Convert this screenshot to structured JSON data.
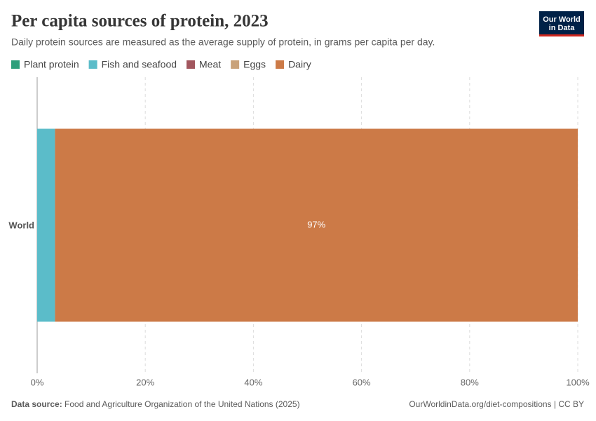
{
  "chart_data": {
    "type": "stacked-bar-horizontal",
    "title": "Per capita sources of protein, 2023",
    "subtitle": "Daily protein sources are measured as the average supply of protein, in grams per capita per day.",
    "categories": [
      "World"
    ],
    "series": [
      {
        "name": "Plant protein",
        "color": "#2e9f7b",
        "values": [
          0
        ]
      },
      {
        "name": "Fish and seafood",
        "color": "#5bbcc9",
        "values": [
          3.3
        ]
      },
      {
        "name": "Meat",
        "color": "#a2575e",
        "values": [
          0
        ]
      },
      {
        "name": "Eggs",
        "color": "#c9a27a",
        "values": [
          0
        ]
      },
      {
        "name": "Dairy",
        "color": "#cc7a47",
        "values": [
          96.7
        ],
        "value_labels": [
          "97%"
        ]
      }
    ],
    "xlim": [
      0,
      100
    ],
    "xticks": [
      {
        "value": 0,
        "label": "0%"
      },
      {
        "value": 20,
        "label": "20%"
      },
      {
        "value": 40,
        "label": "40%"
      },
      {
        "value": 60,
        "label": "60%"
      },
      {
        "value": 80,
        "label": "80%"
      },
      {
        "value": 100,
        "label": "100%"
      }
    ],
    "grid": true,
    "source_label": "Data source:",
    "source_text": "Food and Agriculture Organization of the United Nations (2025)",
    "url": "OurWorldinData.org/diet-compositions | CC BY",
    "logo": [
      "Our World",
      "in Data"
    ]
  }
}
